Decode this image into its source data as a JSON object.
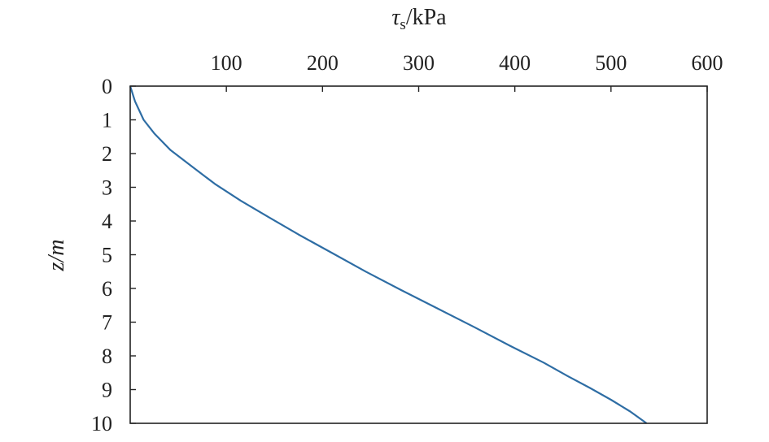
{
  "chart_data": {
    "type": "line",
    "title": "",
    "xlabel": {
      "symbol": "τ",
      "subscript": "s",
      "unit": "/kPa"
    },
    "ylabel": "z/m",
    "xlim": [
      0,
      600
    ],
    "ylim": [
      0,
      10
    ],
    "x_axis_position": "top",
    "y_axis_inverted": true,
    "grid": false,
    "x_ticks": [
      100,
      200,
      300,
      400,
      500,
      600
    ],
    "y_ticks": [
      0,
      1,
      2,
      3,
      4,
      5,
      6,
      7,
      8,
      9,
      10
    ],
    "series": [
      {
        "color": "#2e6da4",
        "points": [
          [
            0,
            0
          ],
          [
            5,
            0.45
          ],
          [
            14,
            1.0
          ],
          [
            25,
            1.4
          ],
          [
            42,
            1.9
          ],
          [
            65,
            2.4
          ],
          [
            88,
            2.9
          ],
          [
            115,
            3.4
          ],
          [
            145,
            3.9
          ],
          [
            175,
            4.4
          ],
          [
            210,
            4.95
          ],
          [
            245,
            5.5
          ],
          [
            282,
            6.05
          ],
          [
            320,
            6.6
          ],
          [
            358,
            7.15
          ],
          [
            395,
            7.7
          ],
          [
            430,
            8.2
          ],
          [
            455,
            8.6
          ],
          [
            478,
            8.95
          ],
          [
            500,
            9.3
          ],
          [
            520,
            9.65
          ],
          [
            537,
            10.0
          ]
        ]
      }
    ]
  }
}
